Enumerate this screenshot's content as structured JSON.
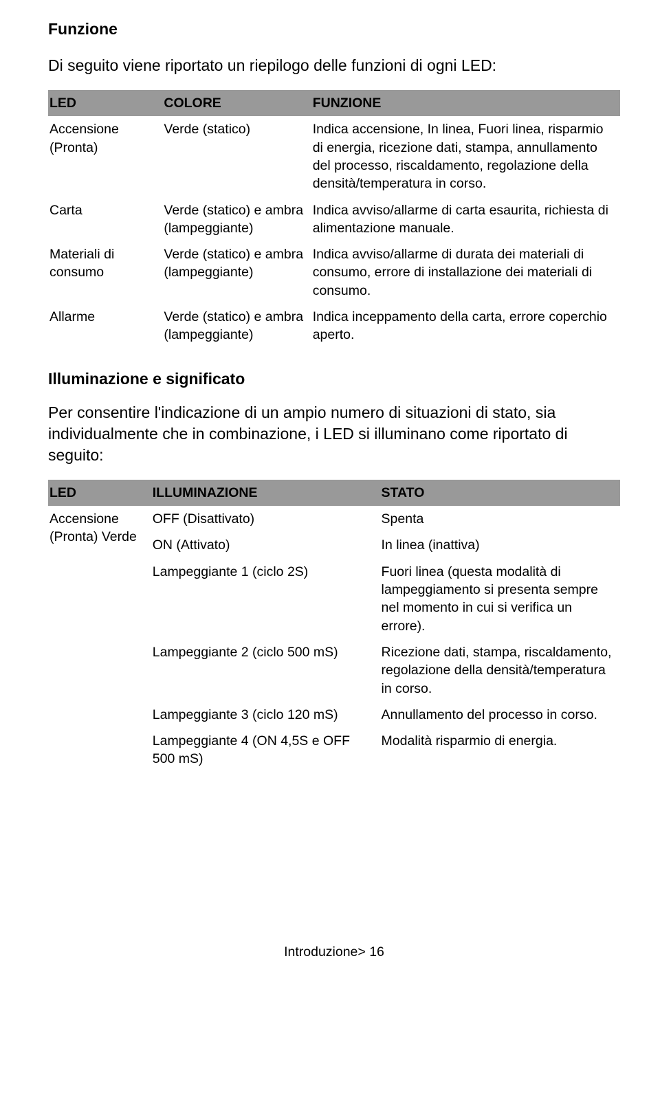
{
  "section1_title": "Funzione",
  "section1_intro": "Di seguito viene riportato un riepilogo delle funzioni di ogni LED:",
  "table1": {
    "headers": {
      "c1": "LED",
      "c2": "COLORE",
      "c3": "FUNZIONE"
    },
    "rows": [
      {
        "c1": "Accensione (Pronta)",
        "c2": "Verde (statico)",
        "c3": "Indica accensione, In linea, Fuori linea, risparmio di energia, ricezione dati, stampa, annullamento del processo, riscaldamento, regolazione della densità/temperatura in corso."
      },
      {
        "c1": "Carta",
        "c2": "Verde (statico) e ambra (lampeggiante)",
        "c3": "Indica avviso/allarme di carta esaurita, richiesta di alimentazione manuale."
      },
      {
        "c1": "Materiali di consumo",
        "c2": "Verde (statico) e ambra (lampeggiante)",
        "c3": "Indica avviso/allarme di durata dei materiali di consumo, errore di installazione dei materiali di consumo."
      },
      {
        "c1": "Allarme",
        "c2": "Verde (statico) e ambra (lampeggiante)",
        "c3": "Indica inceppamento della carta, errore coperchio aperto."
      }
    ]
  },
  "section2_title": "Illuminazione e significato",
  "section2_intro": "Per consentire l'indicazione di un ampio numero di situazioni di stato, sia individualmente che in combinazione, i LED si illuminano come riportato di seguito:",
  "table2": {
    "headers": {
      "c1": "LED",
      "c2": "ILLUMINAZIONE",
      "c3": "STATO"
    },
    "col1": "Accensione (Pronta) Verde",
    "rows": [
      {
        "c2": "OFF (Disattivato)",
        "c3": "Spenta"
      },
      {
        "c2": "ON (Attivato)",
        "c3": "In linea (inattiva)"
      },
      {
        "c2": "Lampeggiante 1 (ciclo 2S)",
        "c3": "Fuori linea (questa modalità di lampeggiamento si presenta sempre nel momento in cui si verifica un errore)."
      },
      {
        "c2": "Lampeggiante 2 (ciclo 500 mS)",
        "c3": "Ricezione dati, stampa, riscaldamento, regolazione della densità/temperatura in corso."
      },
      {
        "c2": "Lampeggiante 3 (ciclo 120 mS)",
        "c3": "Annullamento del processo in corso."
      },
      {
        "c2": "Lampeggiante 4 (ON 4,5S e OFF 500 mS)",
        "c3": "Modalità risparmio di energia."
      }
    ]
  },
  "footer": "Introduzione> 16",
  "colors": {
    "header_bg": "#999999",
    "text": "#000000",
    "background": "#ffffff"
  }
}
